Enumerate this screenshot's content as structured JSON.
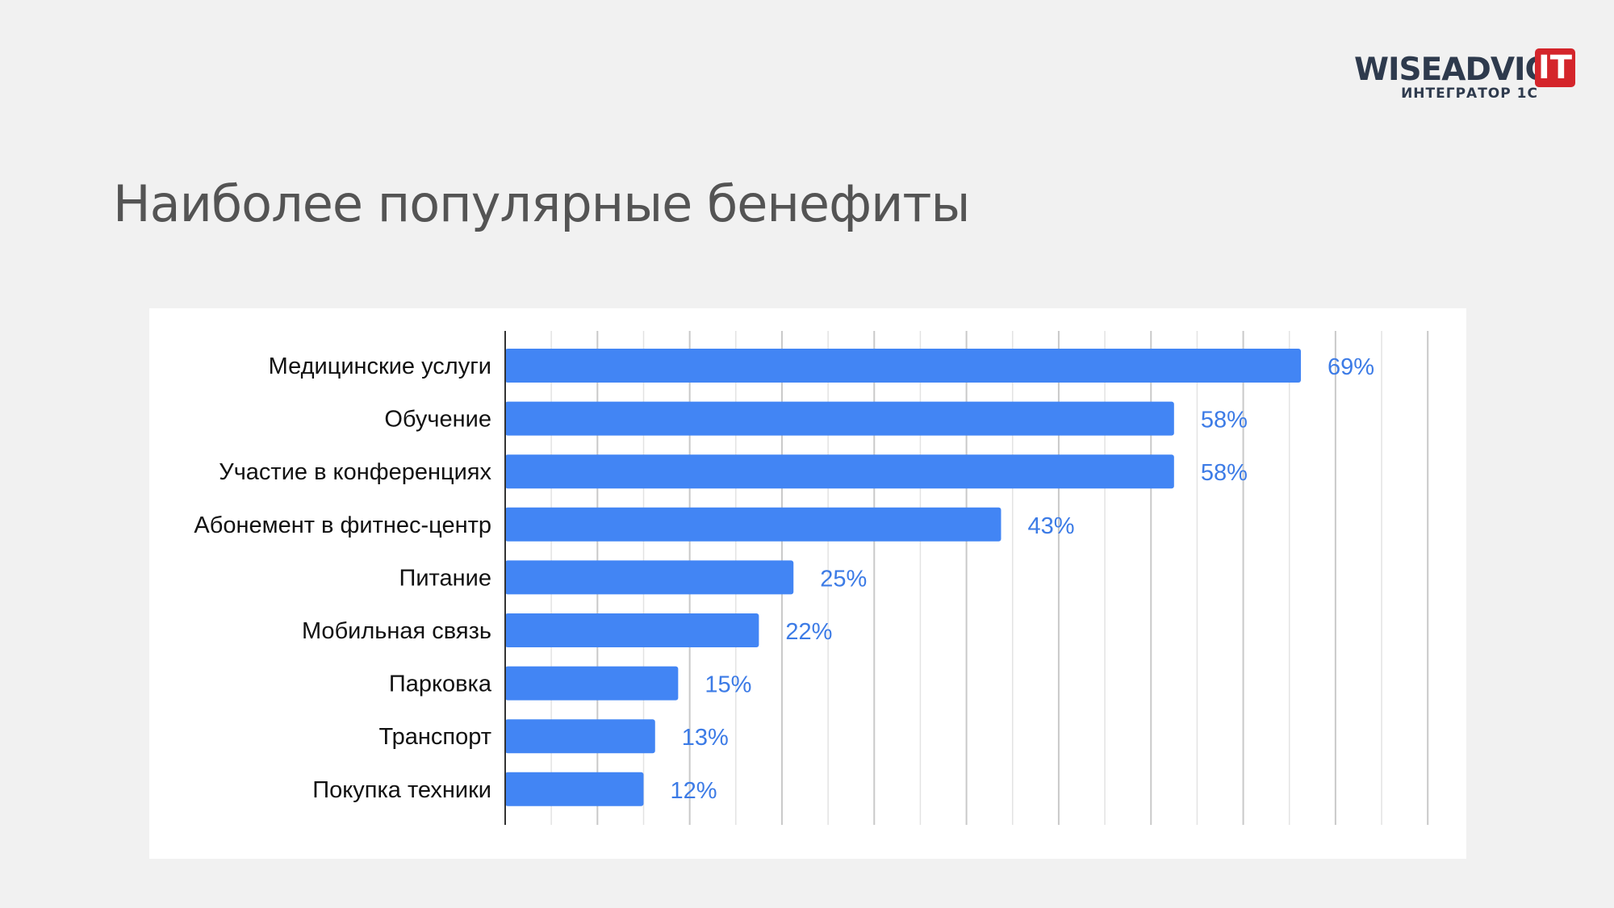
{
  "logo": {
    "wordmark": "WISEADVICE",
    "badge": "IT",
    "tagline": "ИНТЕГРАТОР 1С"
  },
  "slide": {
    "title": "Наиболее популярные бенефиты"
  },
  "colors": {
    "background": "#f1f1f1",
    "bar": "#4285f4",
    "value_label": "#3c7be6",
    "category_label": "#111111",
    "title": "#545454",
    "logo_text": "#2e3a4d",
    "logo_badge": "#d4252b"
  },
  "chart_data": {
    "type": "bar",
    "orientation": "horizontal",
    "title": "",
    "xlabel": "",
    "ylabel": "",
    "categories": [
      "Медицинские услуги",
      "Обучение",
      "Участие в конференциях",
      "Абонемент в фитнес-центр",
      "Питание",
      "Мобильная связь",
      "Парковка",
      "Транспорт",
      "Покупка техники"
    ],
    "values": [
      69,
      58,
      58,
      43,
      25,
      22,
      15,
      13,
      12
    ],
    "value_labels": [
      "69%",
      "58%",
      "58%",
      "43%",
      "25%",
      "22%",
      "15%",
      "13%",
      "12%"
    ],
    "xlim": [
      0,
      80
    ],
    "grid": true,
    "grid_step": 4,
    "legend": "none"
  }
}
